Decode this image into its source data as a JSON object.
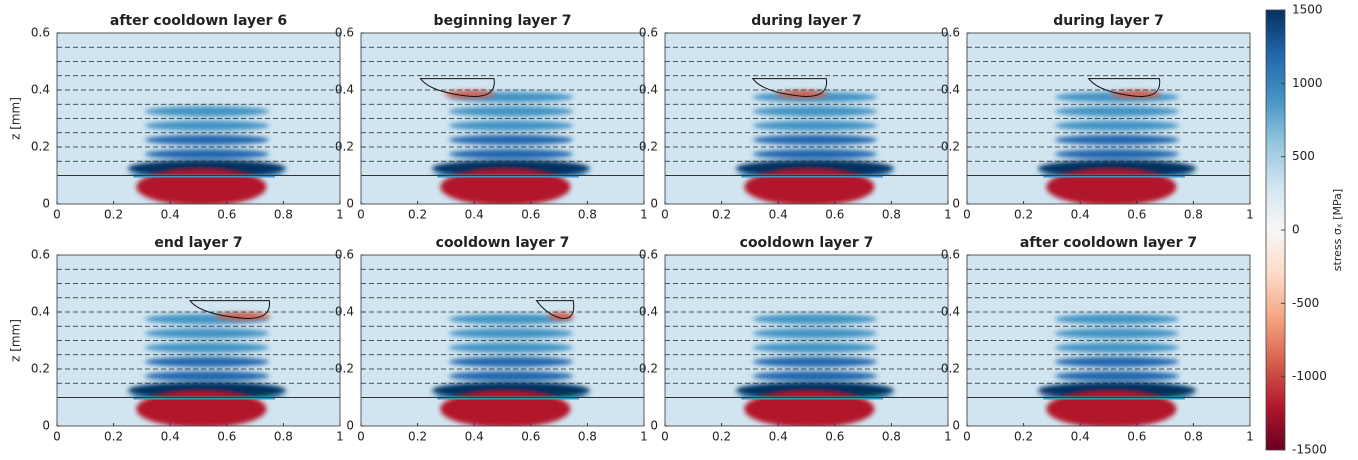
{
  "chart_data": [
    {
      "type": "heatmap",
      "title": "after cooldown layer 6",
      "ylabel": "z [mm]",
      "xlim": [
        0,
        1
      ],
      "ylim": [
        0,
        0.6
      ],
      "xticks": [
        0,
        0.2,
        0.4,
        0.6,
        0.8,
        1
      ],
      "yticks": [
        0,
        0.2,
        0.4,
        0.6
      ],
      "substrate": 0.1,
      "layer_lines": [
        0.15,
        0.2,
        0.25,
        0.3,
        0.35,
        0.4,
        0.45,
        0.5,
        0.55
      ]
    },
    {
      "type": "heatmap",
      "title": "beginning layer 7",
      "xlim": [
        0,
        1
      ],
      "ylim": [
        0,
        0.6
      ],
      "xticks": [
        0,
        0.2,
        0.4,
        0.6,
        0.8,
        1
      ],
      "yticks": [
        0,
        0.2,
        0.4,
        0.6
      ],
      "substrate": 0.1,
      "layer_lines": [
        0.15,
        0.2,
        0.25,
        0.3,
        0.35,
        0.4,
        0.45,
        0.5,
        0.55
      ]
    },
    {
      "type": "heatmap",
      "title": "during layer 7",
      "xlim": [
        0,
        1
      ],
      "ylim": [
        0,
        0.6
      ],
      "xticks": [
        0,
        0.2,
        0.4,
        0.6,
        0.8,
        1
      ],
      "yticks": [
        0,
        0.2,
        0.4,
        0.6
      ],
      "substrate": 0.1,
      "layer_lines": [
        0.15,
        0.2,
        0.25,
        0.3,
        0.35,
        0.4,
        0.45,
        0.5,
        0.55
      ]
    },
    {
      "type": "heatmap",
      "title": "during layer 7",
      "xlim": [
        0,
        1
      ],
      "ylim": [
        0,
        0.6
      ],
      "xticks": [
        0,
        0.2,
        0.4,
        0.6,
        0.8,
        1
      ],
      "yticks": [
        0,
        0.2,
        0.4,
        0.6
      ],
      "substrate": 0.1,
      "layer_lines": [
        0.15,
        0.2,
        0.25,
        0.3,
        0.35,
        0.4,
        0.45,
        0.5,
        0.55
      ]
    },
    {
      "type": "heatmap",
      "title": "end layer 7",
      "ylabel": "z [mm]",
      "xlim": [
        0,
        1
      ],
      "ylim": [
        0,
        0.6
      ],
      "xticks": [
        0,
        0.2,
        0.4,
        0.6,
        0.8,
        1
      ],
      "yticks": [
        0,
        0.2,
        0.4,
        0.6
      ],
      "substrate": 0.1,
      "layer_lines": [
        0.15,
        0.2,
        0.25,
        0.3,
        0.35,
        0.4,
        0.45,
        0.5,
        0.55
      ]
    },
    {
      "type": "heatmap",
      "title": "cooldown layer 7",
      "xlim": [
        0,
        1
      ],
      "ylim": [
        0,
        0.6
      ],
      "xticks": [
        0,
        0.2,
        0.4,
        0.6,
        0.8,
        1
      ],
      "yticks": [
        0,
        0.2,
        0.4,
        0.6
      ],
      "substrate": 0.1,
      "layer_lines": [
        0.15,
        0.2,
        0.25,
        0.3,
        0.35,
        0.4,
        0.45,
        0.5,
        0.55
      ]
    },
    {
      "type": "heatmap",
      "title": "cooldown layer 7",
      "xlim": [
        0,
        1
      ],
      "ylim": [
        0,
        0.6
      ],
      "xticks": [
        0,
        0.2,
        0.4,
        0.6,
        0.8,
        1
      ],
      "yticks": [
        0,
        0.2,
        0.4,
        0.6
      ],
      "substrate": 0.1,
      "layer_lines": [
        0.15,
        0.2,
        0.25,
        0.3,
        0.35,
        0.4,
        0.45,
        0.5,
        0.55
      ]
    },
    {
      "type": "heatmap",
      "title": "after cooldown layer 7",
      "xlim": [
        0,
        1
      ],
      "ylim": [
        0,
        0.6
      ],
      "xticks": [
        0,
        0.2,
        0.4,
        0.6,
        0.8,
        1
      ],
      "yticks": [
        0,
        0.2,
        0.4,
        0.6
      ],
      "substrate": 0.1,
      "layer_lines": [
        0.15,
        0.2,
        0.25,
        0.3,
        0.35,
        0.4,
        0.45,
        0.5,
        0.55
      ]
    }
  ],
  "colorbar": {
    "label": "stress σₓ [MPa]",
    "clim": [
      -1500,
      1500
    ],
    "ticks": [
      -1500,
      -1000,
      -500,
      0,
      500,
      1000,
      1500
    ],
    "colors": [
      "#67001f",
      "#b2182b",
      "#d6604d",
      "#f4a582",
      "#fddbc7",
      "#f7f7f7",
      "#d1e5f0",
      "#92c5de",
      "#4393c3",
      "#2166ac",
      "#053061"
    ]
  }
}
